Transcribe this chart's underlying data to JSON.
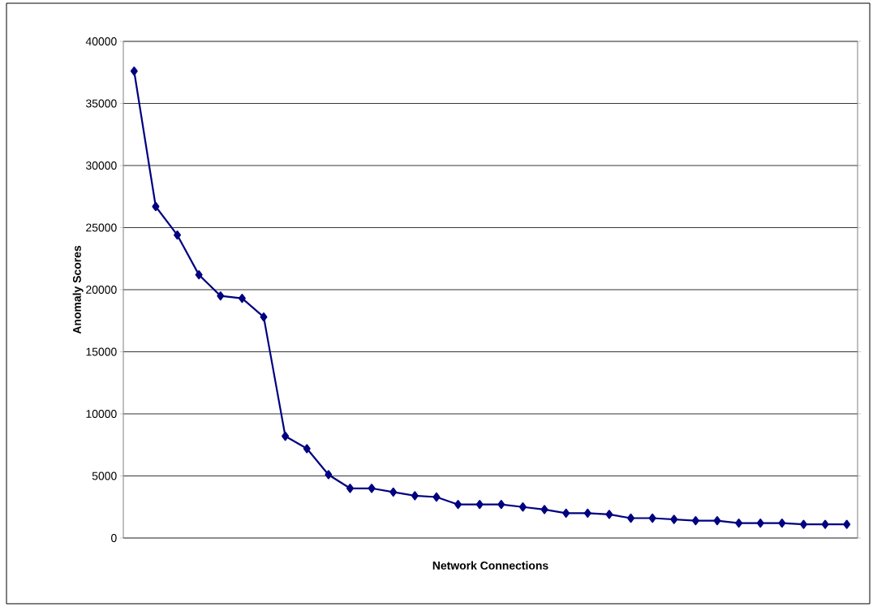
{
  "chart_data": {
    "type": "line",
    "xlabel": "Network Connections",
    "ylabel": "Anomaly Scores",
    "categories": [
      null,
      null,
      null,
      null,
      null,
      null,
      null,
      null,
      null,
      null,
      null,
      null,
      null,
      null,
      null,
      null,
      null,
      null,
      null,
      null,
      null,
      null,
      null,
      null,
      null,
      null,
      null,
      null,
      null,
      null,
      null,
      null,
      null,
      null
    ],
    "series": [
      {
        "color": "#000080",
        "values": [
          37600,
          26700,
          24400,
          21200,
          19500,
          19300,
          17800,
          8200,
          7200,
          5100,
          4000,
          4000,
          3700,
          3400,
          3300,
          2700,
          2700,
          2700,
          2500,
          2300,
          2000,
          2000,
          1900,
          1600,
          1600,
          1500,
          1400,
          1400,
          1200,
          1200,
          1200,
          1100,
          1100,
          1100
        ]
      }
    ],
    "ylim": [
      0,
      40000
    ],
    "yticks": [
      0,
      5000,
      10000,
      15000,
      20000,
      25000,
      30000,
      35000,
      40000
    ],
    "grid": "y",
    "tick_labels": "y",
    "marker": "diamond",
    "line_style": "solid"
  }
}
